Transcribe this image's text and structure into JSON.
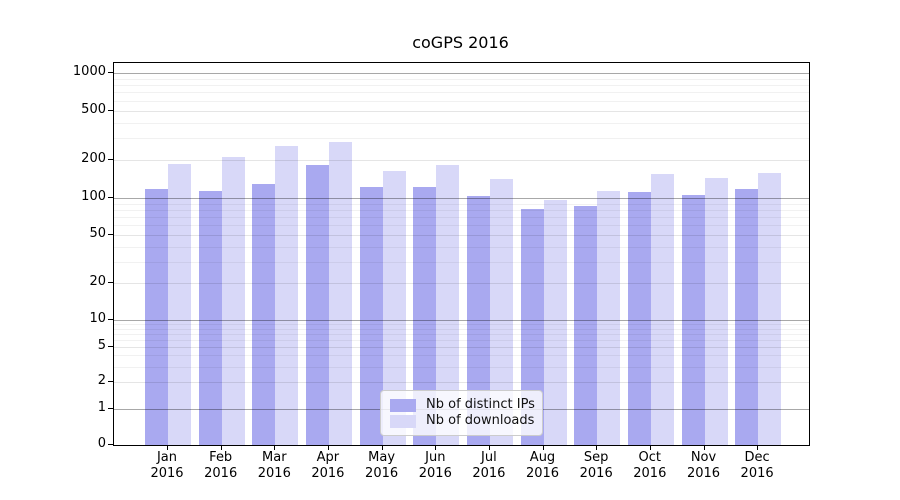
{
  "chart_data": {
    "type": "bar",
    "title": "coGPS 2016",
    "categories": [
      "Jan 2016",
      "Feb 2016",
      "Mar 2016",
      "Apr 2016",
      "May 2016",
      "Jun 2016",
      "Jul 2016",
      "Aug 2016",
      "Sep 2016",
      "Oct 2016",
      "Nov 2016",
      "Dec 2016"
    ],
    "months": [
      "Jan",
      "Feb",
      "Mar",
      "Apr",
      "May",
      "Jun",
      "Jul",
      "Aug",
      "Sep",
      "Oct",
      "Nov",
      "Dec"
    ],
    "year": "2016",
    "series": [
      {
        "name": "Nb of distinct IPs",
        "color": "#a9a9f0",
        "values": [
          119,
          114,
          130,
          185,
          122,
          123,
          104,
          82,
          86,
          112,
          106,
          118
        ]
      },
      {
        "name": "Nb of downloads",
        "color": "#d8d8f8",
        "values": [
          186,
          212,
          262,
          280,
          164,
          185,
          143,
          96,
          113,
          157,
          145,
          159
        ]
      }
    ],
    "xlabel": "",
    "ylabel": "",
    "yscale": "symlog",
    "yticks": [
      0,
      1,
      2,
      5,
      10,
      20,
      50,
      100,
      200,
      500,
      1000
    ],
    "ytick_labels": [
      "0",
      "1",
      "2",
      "5",
      "10",
      "20",
      "50",
      "100",
      "200",
      "500",
      "1000"
    ],
    "ylim": [
      0,
      1200
    ],
    "grid": true,
    "grid_which": "both",
    "legend_position": "lower center"
  },
  "legend": {
    "items": [
      {
        "label": "Nb of distinct IPs",
        "color": "#a9a9f0"
      },
      {
        "label": "Nb of downloads",
        "color": "#d8d8f8"
      }
    ]
  },
  "colors": {
    "background": "#ffffff",
    "axis": "#000000",
    "grid_major": "#a8a8a8",
    "grid_minor": "#f1f1f1",
    "legend_border": "#cccccc"
  }
}
